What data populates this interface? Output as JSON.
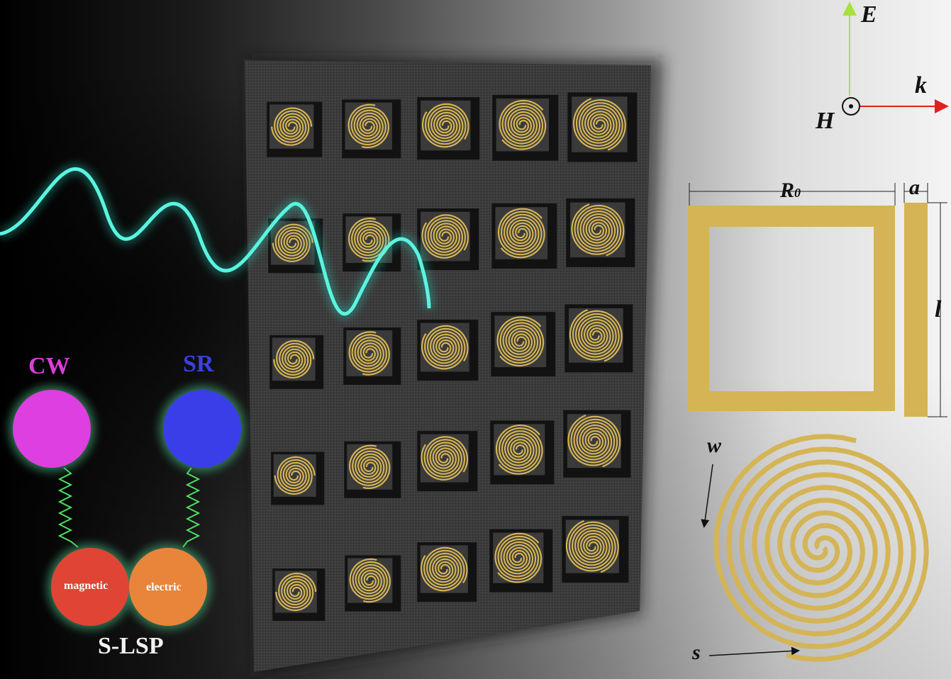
{
  "left_diagram": {
    "cw_label": "CW",
    "sr_label": "SR",
    "magnetic_label": "magnetic",
    "electric_label": "electric",
    "slsp_label": "S-LSP"
  },
  "axes": {
    "e_label": "E",
    "k_label": "k",
    "h_label": "H"
  },
  "dimensions": {
    "r0_label": "R",
    "r0_sub": "0",
    "a_label": "a",
    "l_label": "l",
    "w_label": "w",
    "s_label": "s"
  },
  "colors": {
    "gold": "#d4b455",
    "wave": "#2de0c8",
    "cw": "#dd3fe0",
    "sr": "#3a3ee8",
    "magnetic": "#e04434",
    "electric": "#e8853a",
    "e_arrow": "#a8e040",
    "k_arrow": "#e02020"
  },
  "metasurface": {
    "rows": 5,
    "cols": 5
  }
}
